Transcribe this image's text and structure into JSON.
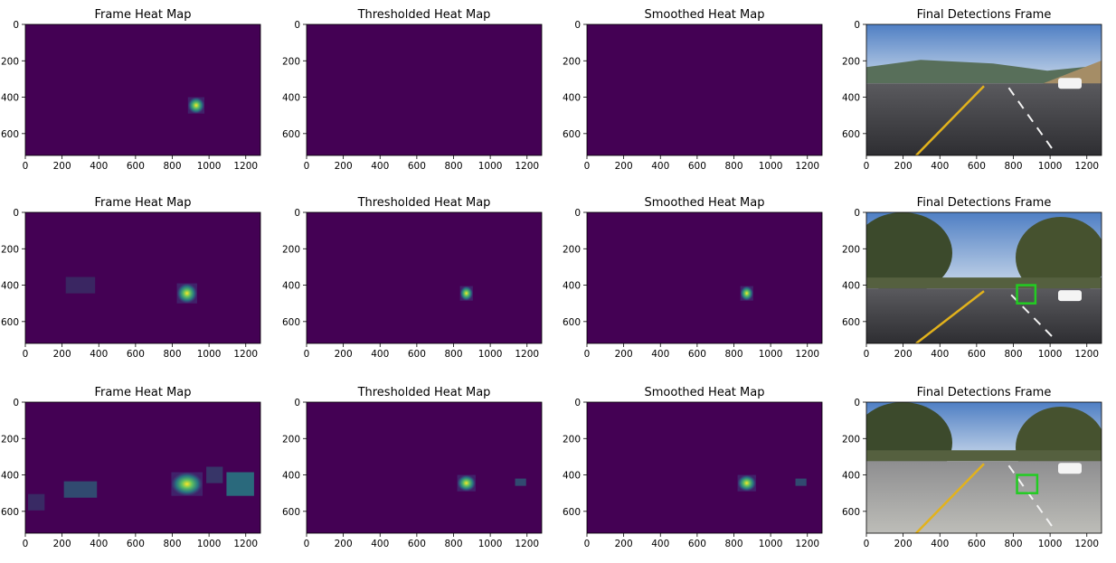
{
  "figure": {
    "grid_rows": 3,
    "grid_cols": 4,
    "colors": {
      "viridis_low": "#440154",
      "viridis_high": "#fde725",
      "detection_box": "#22cc22",
      "axis": "#000000"
    }
  },
  "chart_data": [
    {
      "type": "heatmap",
      "title": "Frame Heat Map",
      "row": 0,
      "col": 0,
      "xlim": [
        0,
        1280
      ],
      "ylim": [
        720,
        0
      ],
      "xticks": [
        "0",
        "200",
        "400",
        "600",
        "800",
        "1000",
        "1200"
      ],
      "yticks": [
        "0",
        "200",
        "400",
        "600"
      ],
      "grid": false,
      "blobs": [
        {
          "x": 930,
          "y": 445,
          "w": 90,
          "h": 90,
          "value": 1.0
        }
      ]
    },
    {
      "type": "heatmap",
      "title": "Thresholded Heat Map",
      "row": 0,
      "col": 1,
      "xlim": [
        0,
        1280
      ],
      "ylim": [
        720,
        0
      ],
      "xticks": [
        "0",
        "200",
        "400",
        "600",
        "800",
        "1000",
        "1200"
      ],
      "yticks": [
        "0",
        "200",
        "400",
        "600"
      ],
      "grid": false,
      "blobs": []
    },
    {
      "type": "heatmap",
      "title": "Smoothed Heat Map",
      "row": 0,
      "col": 2,
      "xlim": [
        0,
        1280
      ],
      "ylim": [
        720,
        0
      ],
      "xticks": [
        "0",
        "200",
        "400",
        "600",
        "800",
        "1000",
        "1200"
      ],
      "yticks": [
        "0",
        "200",
        "400",
        "600"
      ],
      "grid": false,
      "blobs": []
    },
    {
      "type": "image",
      "title": "Final Detections Frame",
      "row": 0,
      "col": 3,
      "xlim": [
        0,
        1280
      ],
      "ylim": [
        720,
        0
      ],
      "xticks": [
        "0",
        "200",
        "400",
        "600",
        "800",
        "1000",
        "1200"
      ],
      "yticks": [
        "0",
        "200",
        "400",
        "600"
      ],
      "detections": []
    },
    {
      "type": "heatmap",
      "title": "Frame Heat Map",
      "row": 1,
      "col": 0,
      "xlim": [
        0,
        1280
      ],
      "ylim": [
        720,
        0
      ],
      "xticks": [
        "0",
        "200",
        "400",
        "600",
        "800",
        "1000",
        "1200"
      ],
      "yticks": [
        "0",
        "200",
        "400",
        "600"
      ],
      "grid": false,
      "blobs": [
        {
          "x": 300,
          "y": 400,
          "w": 160,
          "h": 90,
          "value": 0.18
        },
        {
          "x": 880,
          "y": 445,
          "w": 110,
          "h": 110,
          "value": 1.0
        }
      ]
    },
    {
      "type": "heatmap",
      "title": "Thresholded Heat Map",
      "row": 1,
      "col": 1,
      "xlim": [
        0,
        1280
      ],
      "ylim": [
        720,
        0
      ],
      "xticks": [
        "0",
        "200",
        "400",
        "600",
        "800",
        "1000",
        "1200"
      ],
      "yticks": [
        "0",
        "200",
        "400",
        "600"
      ],
      "grid": false,
      "blobs": [
        {
          "x": 870,
          "y": 445,
          "w": 70,
          "h": 80,
          "value": 1.0
        }
      ]
    },
    {
      "type": "heatmap",
      "title": "Smoothed Heat Map",
      "row": 1,
      "col": 2,
      "xlim": [
        0,
        1280
      ],
      "ylim": [
        720,
        0
      ],
      "xticks": [
        "0",
        "200",
        "400",
        "600",
        "800",
        "1000",
        "1200"
      ],
      "yticks": [
        "0",
        "200",
        "400",
        "600"
      ],
      "grid": false,
      "blobs": [
        {
          "x": 870,
          "y": 445,
          "w": 70,
          "h": 80,
          "value": 1.0
        }
      ]
    },
    {
      "type": "image",
      "title": "Final Detections Frame",
      "row": 1,
      "col": 3,
      "xlim": [
        0,
        1280
      ],
      "ylim": [
        720,
        0
      ],
      "xticks": [
        "0",
        "200",
        "400",
        "600",
        "800",
        "1000",
        "1200"
      ],
      "yticks": [
        "0",
        "200",
        "400",
        "600"
      ],
      "detections": [
        {
          "x0": 820,
          "y0": 400,
          "x1": 920,
          "y1": 500
        }
      ]
    },
    {
      "type": "heatmap",
      "title": "Frame Heat Map",
      "row": 2,
      "col": 0,
      "xlim": [
        0,
        1280
      ],
      "ylim": [
        720,
        0
      ],
      "xticks": [
        "0",
        "200",
        "400",
        "600",
        "800",
        "1000",
        "1200"
      ],
      "yticks": [
        "0",
        "200",
        "400",
        "600"
      ],
      "grid": false,
      "blobs": [
        {
          "x": 300,
          "y": 480,
          "w": 180,
          "h": 90,
          "value": 0.35
        },
        {
          "x": 60,
          "y": 550,
          "w": 90,
          "h": 90,
          "value": 0.2
        },
        {
          "x": 880,
          "y": 450,
          "w": 170,
          "h": 130,
          "value": 1.0
        },
        {
          "x": 1170,
          "y": 450,
          "w": 150,
          "h": 130,
          "value": 0.5
        },
        {
          "x": 1030,
          "y": 400,
          "w": 90,
          "h": 90,
          "value": 0.25
        }
      ]
    },
    {
      "type": "heatmap",
      "title": "Thresholded Heat Map",
      "row": 2,
      "col": 1,
      "xlim": [
        0,
        1280
      ],
      "ylim": [
        720,
        0
      ],
      "xticks": [
        "0",
        "200",
        "400",
        "600",
        "800",
        "1000",
        "1200"
      ],
      "yticks": [
        "0",
        "200",
        "400",
        "600"
      ],
      "grid": false,
      "blobs": [
        {
          "x": 870,
          "y": 445,
          "w": 100,
          "h": 90,
          "value": 1.0
        },
        {
          "x": 1165,
          "y": 440,
          "w": 60,
          "h": 40,
          "value": 0.35
        }
      ]
    },
    {
      "type": "heatmap",
      "title": "Smoothed Heat Map",
      "row": 2,
      "col": 2,
      "xlim": [
        0,
        1280
      ],
      "ylim": [
        720,
        0
      ],
      "xticks": [
        "0",
        "200",
        "400",
        "600",
        "800",
        "1000",
        "1200"
      ],
      "yticks": [
        "0",
        "200",
        "400",
        "600"
      ],
      "grid": false,
      "blobs": [
        {
          "x": 870,
          "y": 445,
          "w": 100,
          "h": 90,
          "value": 1.0
        },
        {
          "x": 1165,
          "y": 440,
          "w": 60,
          "h": 40,
          "value": 0.35
        }
      ]
    },
    {
      "type": "image",
      "title": "Final Detections Frame",
      "row": 2,
      "col": 3,
      "xlim": [
        0,
        1280
      ],
      "ylim": [
        720,
        0
      ],
      "xticks": [
        "0",
        "200",
        "400",
        "600",
        "800",
        "1000",
        "1200"
      ],
      "yticks": [
        "0",
        "200",
        "400",
        "600"
      ],
      "detections": [
        {
          "x0": 820,
          "y0": 400,
          "x1": 930,
          "y1": 500
        }
      ]
    }
  ]
}
